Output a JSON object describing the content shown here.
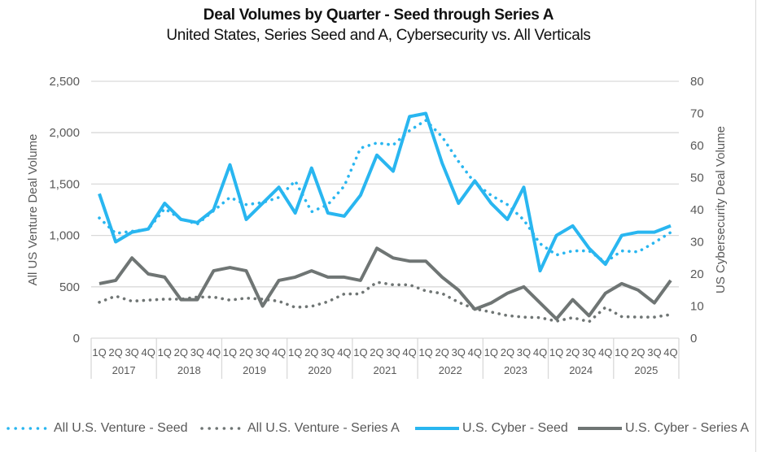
{
  "chart_data": {
    "type": "line",
    "title": "Deal Volumes by Quarter - Seed through Series A",
    "subtitle": "United States, Series Seed and A, Cybersecurity vs. All Verticals",
    "ylabel_left": "All US Venture Deal Volume",
    "ylabel_right": "US Cybersecurity Deal Volume",
    "ylim_left": [
      0,
      2500
    ],
    "ylim_right": [
      0,
      80
    ],
    "yticks_left": [
      "0",
      "500",
      "1,000",
      "1,500",
      "2,000",
      "2,500"
    ],
    "yticks_right": [
      "0",
      "10",
      "20",
      "30",
      "40",
      "50",
      "60",
      "70",
      "80"
    ],
    "grid": true,
    "legend_position": "bottom",
    "years": [
      "2017",
      "2018",
      "2019",
      "2020",
      "2021",
      "2022",
      "2023",
      "2024",
      "2025"
    ],
    "quarters": [
      "1Q",
      "2Q",
      "3Q",
      "4Q"
    ],
    "series": [
      {
        "name": "All U.S. Venture - Seed",
        "axis": "left",
        "style": "dotted",
        "color": "#29B6F0",
        "values": [
          1170,
          1020,
          1040,
          1060,
          1260,
          1160,
          1110,
          1240,
          1370,
          1300,
          1320,
          1370,
          1530,
          1230,
          1300,
          1480,
          1850,
          1900,
          1880,
          2020,
          2120,
          1960,
          1720,
          1510,
          1390,
          1300,
          1150,
          920,
          810,
          850,
          850,
          740,
          850,
          840,
          930,
          1030
        ]
      },
      {
        "name": "All U.S. Venture - Series A",
        "axis": "left",
        "style": "dotted",
        "color": "#6F7574",
        "values": [
          350,
          410,
          360,
          370,
          380,
          380,
          400,
          400,
          370,
          390,
          380,
          360,
          300,
          310,
          355,
          430,
          430,
          545,
          520,
          520,
          460,
          435,
          350,
          285,
          255,
          220,
          205,
          200,
          165,
          200,
          160,
          300,
          210,
          205,
          205,
          230
        ]
      },
      {
        "name": "U.S. Cyber - Seed",
        "axis": "right",
        "style": "solid",
        "color": "#29B6F0",
        "values": [
          45,
          30,
          33,
          34,
          42,
          37,
          36,
          40,
          54,
          37,
          42,
          47,
          39,
          53,
          39,
          38,
          44.5,
          57,
          52,
          69,
          70,
          54.5,
          42,
          49,
          42,
          37,
          47,
          21,
          32,
          35,
          28,
          23,
          32,
          33,
          33,
          35
        ]
      },
      {
        "name": "U.S. Cyber - Series A",
        "axis": "right",
        "style": "solid",
        "color": "#6F7574",
        "values": [
          17,
          18,
          25,
          20,
          19,
          12,
          12,
          21,
          22,
          21,
          10,
          18,
          19,
          21,
          19,
          19,
          18,
          28,
          25,
          24,
          24,
          19,
          15,
          9,
          11,
          14,
          16,
          11,
          6,
          12,
          7,
          14,
          17,
          15,
          11,
          18
        ]
      }
    ]
  }
}
